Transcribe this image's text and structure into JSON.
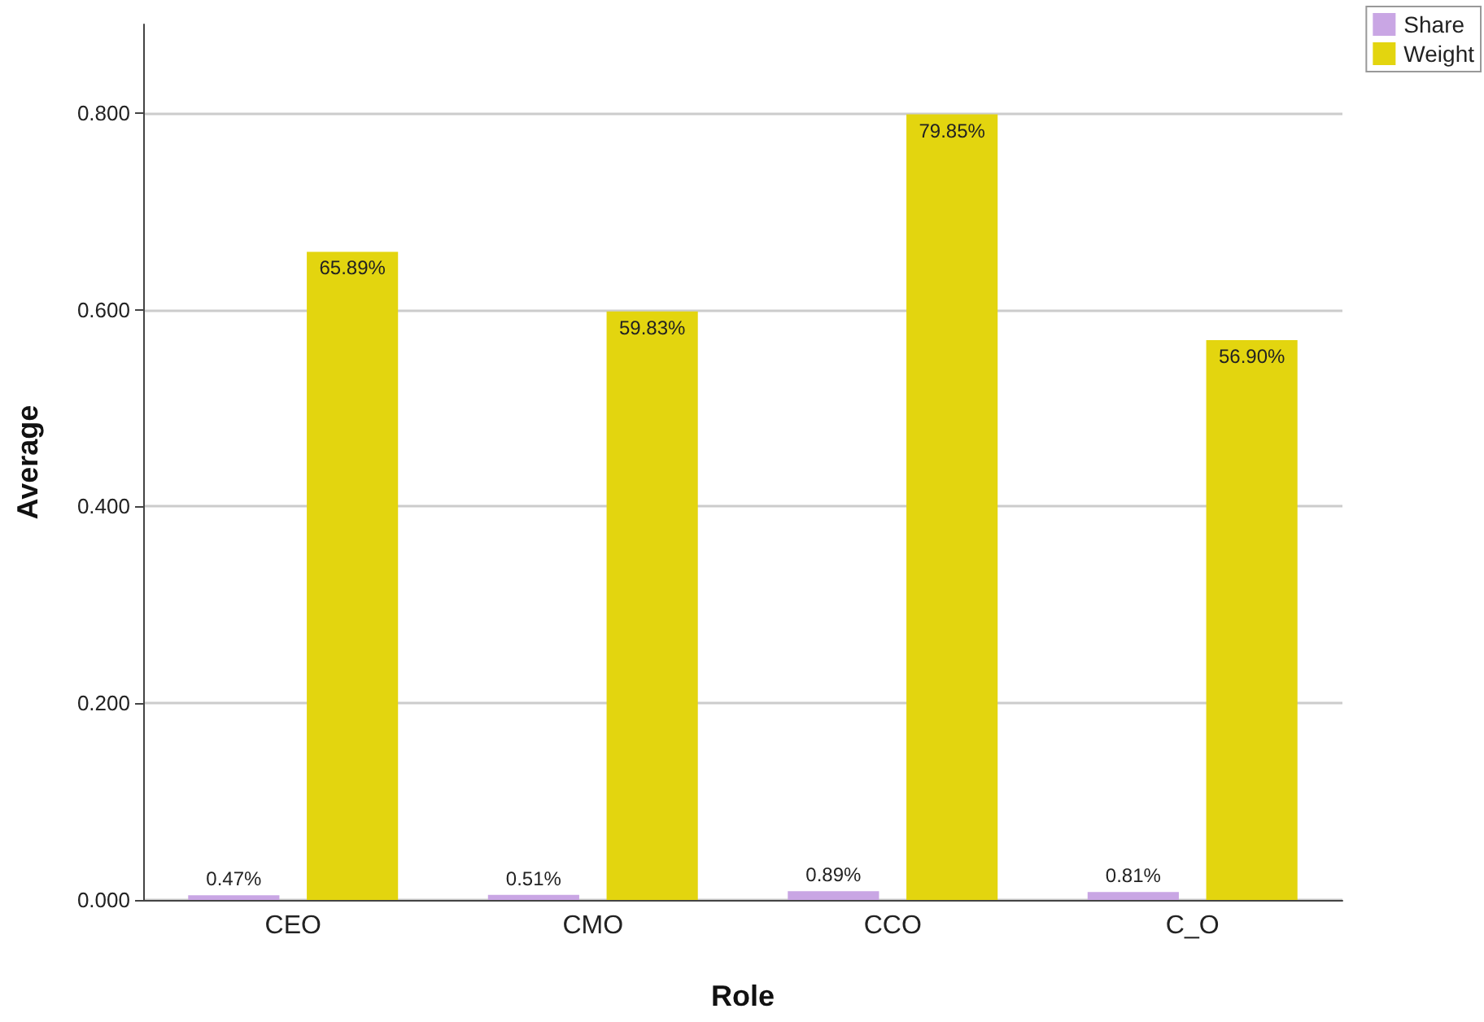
{
  "chart_data": {
    "type": "bar",
    "xlabel": "Role",
    "ylabel": "Average",
    "categories": [
      "CEO",
      "CMO",
      "CCO",
      "C_O"
    ],
    "series": [
      {
        "name": "Share",
        "color": "#c9a6e4",
        "values": [
          0.0047,
          0.0051,
          0.0089,
          0.0081
        ],
        "value_labels": [
          "0.47%",
          "0.51%",
          "0.89%",
          "0.81%"
        ]
      },
      {
        "name": "Weight",
        "color": "#e3d50f",
        "values": [
          0.6589,
          0.5983,
          0.7985,
          0.569
        ],
        "value_labels": [
          "65.89%",
          "59.83%",
          "79.85%",
          "56.90%"
        ]
      }
    ],
    "ylim": [
      0,
      0.89
    ],
    "yticks": [
      {
        "value": 0,
        "label": "0.000"
      },
      {
        "value": 0.2,
        "label": "0.200"
      },
      {
        "value": 0.4,
        "label": "0.400"
      },
      {
        "value": 0.6,
        "label": "0.600"
      },
      {
        "value": 0.8,
        "label": "0.800"
      }
    ],
    "grid": "y",
    "legend": "top right"
  }
}
